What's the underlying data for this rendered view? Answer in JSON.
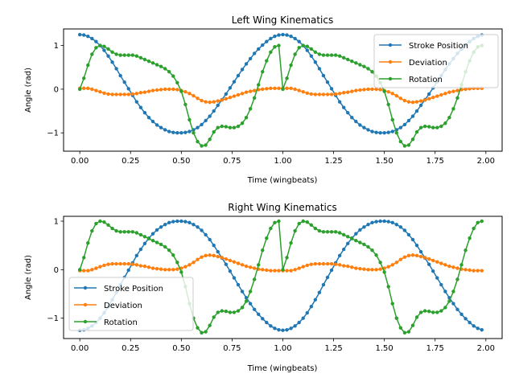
{
  "chart_data": [
    {
      "type": "line",
      "title": "Left Wing Kinematics",
      "xlabel": "Time (wingbeats)",
      "ylabel": "Angle (rad)",
      "xlim": [
        -0.08,
        2.08
      ],
      "ylim": [
        -1.42,
        1.38
      ],
      "xticks": [
        0.0,
        0.25,
        0.5,
        0.75,
        1.0,
        1.25,
        1.5,
        1.75,
        2.0
      ],
      "xtick_labels": [
        "0.00",
        "0.25",
        "0.50",
        "0.75",
        "1.00",
        "1.25",
        "1.50",
        "1.75",
        "2.00"
      ],
      "yticks": [
        -1,
        0,
        1
      ],
      "ytick_labels": [
        "−1",
        "0",
        "1"
      ],
      "legend_position": "upper right",
      "x": [
        0.0,
        0.02,
        0.04,
        0.06,
        0.08,
        0.1,
        0.12,
        0.14,
        0.16,
        0.18,
        0.2,
        0.22,
        0.24,
        0.26,
        0.28,
        0.3,
        0.32,
        0.34,
        0.36,
        0.38,
        0.4,
        0.42,
        0.44,
        0.46,
        0.48,
        0.5,
        0.52,
        0.54,
        0.56,
        0.58,
        0.6,
        0.62,
        0.64,
        0.66,
        0.68,
        0.7,
        0.72,
        0.74,
        0.76,
        0.78,
        0.8,
        0.82,
        0.84,
        0.86,
        0.88,
        0.9,
        0.92,
        0.94,
        0.96,
        0.98,
        1.0,
        1.02,
        1.04,
        1.06,
        1.08,
        1.1,
        1.12,
        1.14,
        1.16,
        1.18,
        1.2,
        1.22,
        1.24,
        1.26,
        1.28,
        1.3,
        1.32,
        1.34,
        1.36,
        1.38,
        1.4,
        1.42,
        1.44,
        1.46,
        1.48,
        1.5,
        1.52,
        1.54,
        1.56,
        1.58,
        1.6,
        1.62,
        1.64,
        1.66,
        1.68,
        1.7,
        1.72,
        1.74,
        1.76,
        1.78,
        1.8,
        1.82,
        1.84,
        1.86,
        1.88,
        1.9,
        1.92,
        1.94,
        1.96,
        1.98
      ],
      "series": [
        {
          "name": "Stroke Position",
          "color": "#1f77b4",
          "values": [
            1.25,
            1.24,
            1.21,
            1.16,
            1.09,
            1.0,
            0.89,
            0.76,
            0.62,
            0.47,
            0.31,
            0.16,
            0.01,
            -0.14,
            -0.29,
            -0.42,
            -0.54,
            -0.65,
            -0.74,
            -0.82,
            -0.88,
            -0.93,
            -0.97,
            -0.99,
            -1.0,
            -1.0,
            -0.99,
            -0.97,
            -0.93,
            -0.88,
            -0.81,
            -0.72,
            -0.62,
            -0.5,
            -0.37,
            -0.24,
            -0.11,
            0.03,
            0.17,
            0.31,
            0.45,
            0.58,
            0.7,
            0.82,
            0.92,
            1.01,
            1.09,
            1.16,
            1.21,
            1.24,
            1.25,
            1.24,
            1.21,
            1.16,
            1.09,
            1.0,
            0.89,
            0.76,
            0.62,
            0.47,
            0.31,
            0.16,
            0.01,
            -0.14,
            -0.29,
            -0.42,
            -0.54,
            -0.65,
            -0.74,
            -0.82,
            -0.88,
            -0.93,
            -0.97,
            -0.99,
            -1.0,
            -1.0,
            -0.99,
            -0.97,
            -0.93,
            -0.88,
            -0.81,
            -0.72,
            -0.62,
            -0.5,
            -0.37,
            -0.24,
            -0.11,
            0.03,
            0.17,
            0.31,
            0.45,
            0.58,
            0.7,
            0.82,
            0.92,
            1.01,
            1.09,
            1.16,
            1.21,
            1.24
          ]
        },
        {
          "name": "Deviation",
          "color": "#ff7f0e",
          "values": [
            0.02,
            0.02,
            0.02,
            0.0,
            -0.03,
            -0.06,
            -0.09,
            -0.11,
            -0.12,
            -0.12,
            -0.12,
            -0.12,
            -0.12,
            -0.11,
            -0.1,
            -0.08,
            -0.07,
            -0.05,
            -0.03,
            -0.02,
            -0.01,
            0.0,
            0.0,
            0.0,
            -0.01,
            -0.03,
            -0.06,
            -0.1,
            -0.15,
            -0.21,
            -0.26,
            -0.29,
            -0.3,
            -0.29,
            -0.27,
            -0.25,
            -0.22,
            -0.19,
            -0.16,
            -0.13,
            -0.1,
            -0.07,
            -0.05,
            -0.03,
            -0.01,
            0.0,
            0.01,
            0.02,
            0.02,
            0.02,
            0.02,
            0.02,
            0.02,
            0.0,
            -0.03,
            -0.06,
            -0.09,
            -0.11,
            -0.12,
            -0.12,
            -0.12,
            -0.12,
            -0.12,
            -0.11,
            -0.1,
            -0.08,
            -0.07,
            -0.05,
            -0.03,
            -0.02,
            -0.01,
            0.0,
            0.0,
            0.0,
            -0.01,
            -0.03,
            -0.06,
            -0.1,
            -0.15,
            -0.21,
            -0.26,
            -0.29,
            -0.3,
            -0.29,
            -0.27,
            -0.25,
            -0.22,
            -0.19,
            -0.16,
            -0.13,
            -0.1,
            -0.07,
            -0.05,
            -0.03,
            -0.01,
            0.0,
            0.01,
            0.02,
            0.02,
            0.02
          ]
        },
        {
          "name": "Rotation",
          "color": "#2ca02c",
          "values": [
            0.0,
            0.25,
            0.55,
            0.8,
            0.95,
            1.0,
            0.98,
            0.92,
            0.85,
            0.8,
            0.78,
            0.78,
            0.78,
            0.78,
            0.76,
            0.72,
            0.68,
            0.64,
            0.6,
            0.56,
            0.52,
            0.47,
            0.4,
            0.3,
            0.15,
            -0.05,
            -0.35,
            -0.7,
            -1.0,
            -1.2,
            -1.3,
            -1.28,
            -1.15,
            -0.98,
            -0.88,
            -0.85,
            -0.86,
            -0.88,
            -0.88,
            -0.85,
            -0.78,
            -0.65,
            -0.45,
            -0.2,
            0.1,
            0.4,
            0.65,
            0.85,
            0.97,
            1.0,
            0.0,
            0.25,
            0.55,
            0.8,
            0.95,
            1.0,
            0.98,
            0.92,
            0.85,
            0.8,
            0.78,
            0.78,
            0.78,
            0.78,
            0.76,
            0.72,
            0.68,
            0.64,
            0.6,
            0.56,
            0.52,
            0.47,
            0.4,
            0.3,
            0.15,
            -0.05,
            -0.35,
            -0.7,
            -1.0,
            -1.2,
            -1.3,
            -1.28,
            -1.15,
            -0.98,
            -0.88,
            -0.85,
            -0.86,
            -0.88,
            -0.88,
            -0.85,
            -0.78,
            -0.65,
            -0.45,
            -0.2,
            0.1,
            0.4,
            0.65,
            0.85,
            0.97,
            1.0
          ]
        }
      ]
    },
    {
      "type": "line",
      "title": "Right Wing Kinematics",
      "xlabel": "Time (wingbeats)",
      "ylabel": "Angle (rad)",
      "xlim": [
        -0.08,
        2.08
      ],
      "ylim": [
        -1.42,
        1.1
      ],
      "xticks": [
        0.0,
        0.25,
        0.5,
        0.75,
        1.0,
        1.25,
        1.5,
        1.75,
        2.0
      ],
      "xtick_labels": [
        "0.00",
        "0.25",
        "0.50",
        "0.75",
        "1.00",
        "1.25",
        "1.50",
        "1.75",
        "2.00"
      ],
      "yticks": [
        -1,
        0,
        1
      ],
      "ytick_labels": [
        "−1",
        "0",
        "1"
      ],
      "legend_position": "lower left",
      "x": [
        0.0,
        0.02,
        0.04,
        0.06,
        0.08,
        0.1,
        0.12,
        0.14,
        0.16,
        0.18,
        0.2,
        0.22,
        0.24,
        0.26,
        0.28,
        0.3,
        0.32,
        0.34,
        0.36,
        0.38,
        0.4,
        0.42,
        0.44,
        0.46,
        0.48,
        0.5,
        0.52,
        0.54,
        0.56,
        0.58,
        0.6,
        0.62,
        0.64,
        0.66,
        0.68,
        0.7,
        0.72,
        0.74,
        0.76,
        0.78,
        0.8,
        0.82,
        0.84,
        0.86,
        0.88,
        0.9,
        0.92,
        0.94,
        0.96,
        0.98,
        1.0,
        1.02,
        1.04,
        1.06,
        1.08,
        1.1,
        1.12,
        1.14,
        1.16,
        1.18,
        1.2,
        1.22,
        1.24,
        1.26,
        1.28,
        1.3,
        1.32,
        1.34,
        1.36,
        1.38,
        1.4,
        1.42,
        1.44,
        1.46,
        1.48,
        1.5,
        1.52,
        1.54,
        1.56,
        1.58,
        1.6,
        1.62,
        1.64,
        1.66,
        1.68,
        1.7,
        1.72,
        1.74,
        1.76,
        1.78,
        1.8,
        1.82,
        1.84,
        1.86,
        1.88,
        1.9,
        1.92,
        1.94,
        1.96,
        1.98
      ],
      "series": [
        {
          "name": "Stroke Position",
          "color": "#1f77b4",
          "values": [
            -1.25,
            -1.24,
            -1.21,
            -1.16,
            -1.09,
            -1.0,
            -0.89,
            -0.76,
            -0.62,
            -0.47,
            -0.31,
            -0.16,
            -0.01,
            0.14,
            0.29,
            0.42,
            0.54,
            0.65,
            0.74,
            0.82,
            0.88,
            0.93,
            0.97,
            0.99,
            1.0,
            1.0,
            0.99,
            0.97,
            0.93,
            0.88,
            0.81,
            0.72,
            0.62,
            0.5,
            0.37,
            0.24,
            0.11,
            -0.03,
            -0.17,
            -0.31,
            -0.45,
            -0.58,
            -0.7,
            -0.82,
            -0.92,
            -1.01,
            -1.09,
            -1.16,
            -1.21,
            -1.24,
            -1.25,
            -1.24,
            -1.21,
            -1.16,
            -1.09,
            -1.0,
            -0.89,
            -0.76,
            -0.62,
            -0.47,
            -0.31,
            -0.16,
            -0.01,
            0.14,
            0.29,
            0.42,
            0.54,
            0.65,
            0.74,
            0.82,
            0.88,
            0.93,
            0.97,
            0.99,
            1.0,
            1.0,
            0.99,
            0.97,
            0.93,
            0.88,
            0.81,
            0.72,
            0.62,
            0.5,
            0.37,
            0.24,
            0.11,
            -0.03,
            -0.17,
            -0.31,
            -0.45,
            -0.58,
            -0.7,
            -0.82,
            -0.92,
            -1.01,
            -1.09,
            -1.16,
            -1.21,
            -1.24
          ]
        },
        {
          "name": "Deviation",
          "color": "#ff7f0e",
          "values": [
            -0.02,
            -0.02,
            -0.02,
            0.0,
            0.03,
            0.06,
            0.09,
            0.11,
            0.12,
            0.12,
            0.12,
            0.12,
            0.12,
            0.11,
            0.1,
            0.08,
            0.07,
            0.05,
            0.03,
            0.02,
            0.01,
            0.0,
            0.0,
            0.0,
            0.01,
            0.03,
            0.06,
            0.1,
            0.15,
            0.21,
            0.26,
            0.29,
            0.3,
            0.29,
            0.27,
            0.25,
            0.22,
            0.19,
            0.16,
            0.13,
            0.1,
            0.07,
            0.05,
            0.03,
            0.01,
            0.0,
            -0.01,
            -0.02,
            -0.02,
            -0.02,
            -0.02,
            -0.02,
            -0.02,
            0.0,
            0.03,
            0.06,
            0.09,
            0.11,
            0.12,
            0.12,
            0.12,
            0.12,
            0.12,
            0.11,
            0.1,
            0.08,
            0.07,
            0.05,
            0.03,
            0.02,
            0.01,
            0.0,
            0.0,
            0.0,
            0.01,
            0.03,
            0.06,
            0.1,
            0.15,
            0.21,
            0.26,
            0.29,
            0.3,
            0.29,
            0.27,
            0.25,
            0.22,
            0.19,
            0.16,
            0.13,
            0.1,
            0.07,
            0.05,
            0.03,
            0.01,
            0.0,
            -0.01,
            -0.02,
            -0.02,
            -0.02
          ]
        },
        {
          "name": "Rotation",
          "color": "#2ca02c",
          "values": [
            0.0,
            0.25,
            0.55,
            0.8,
            0.95,
            1.0,
            0.98,
            0.92,
            0.85,
            0.8,
            0.78,
            0.78,
            0.78,
            0.78,
            0.76,
            0.72,
            0.68,
            0.64,
            0.6,
            0.56,
            0.52,
            0.47,
            0.4,
            0.3,
            0.15,
            -0.05,
            -0.35,
            -0.7,
            -1.0,
            -1.2,
            -1.3,
            -1.28,
            -1.15,
            -0.98,
            -0.88,
            -0.85,
            -0.86,
            -0.88,
            -0.88,
            -0.85,
            -0.78,
            -0.65,
            -0.45,
            -0.2,
            0.1,
            0.4,
            0.65,
            0.85,
            0.97,
            1.0,
            0.0,
            0.25,
            0.55,
            0.8,
            0.95,
            1.0,
            0.98,
            0.92,
            0.85,
            0.8,
            0.78,
            0.78,
            0.78,
            0.78,
            0.76,
            0.72,
            0.68,
            0.64,
            0.6,
            0.56,
            0.52,
            0.47,
            0.4,
            0.3,
            0.15,
            -0.05,
            -0.35,
            -0.7,
            -1.0,
            -1.2,
            -1.3,
            -1.28,
            -1.15,
            -0.98,
            -0.88,
            -0.85,
            -0.86,
            -0.88,
            -0.88,
            -0.85,
            -0.78,
            -0.65,
            -0.45,
            -0.2,
            0.1,
            0.4,
            0.65,
            0.85,
            0.97,
            1.0
          ]
        }
      ]
    }
  ]
}
